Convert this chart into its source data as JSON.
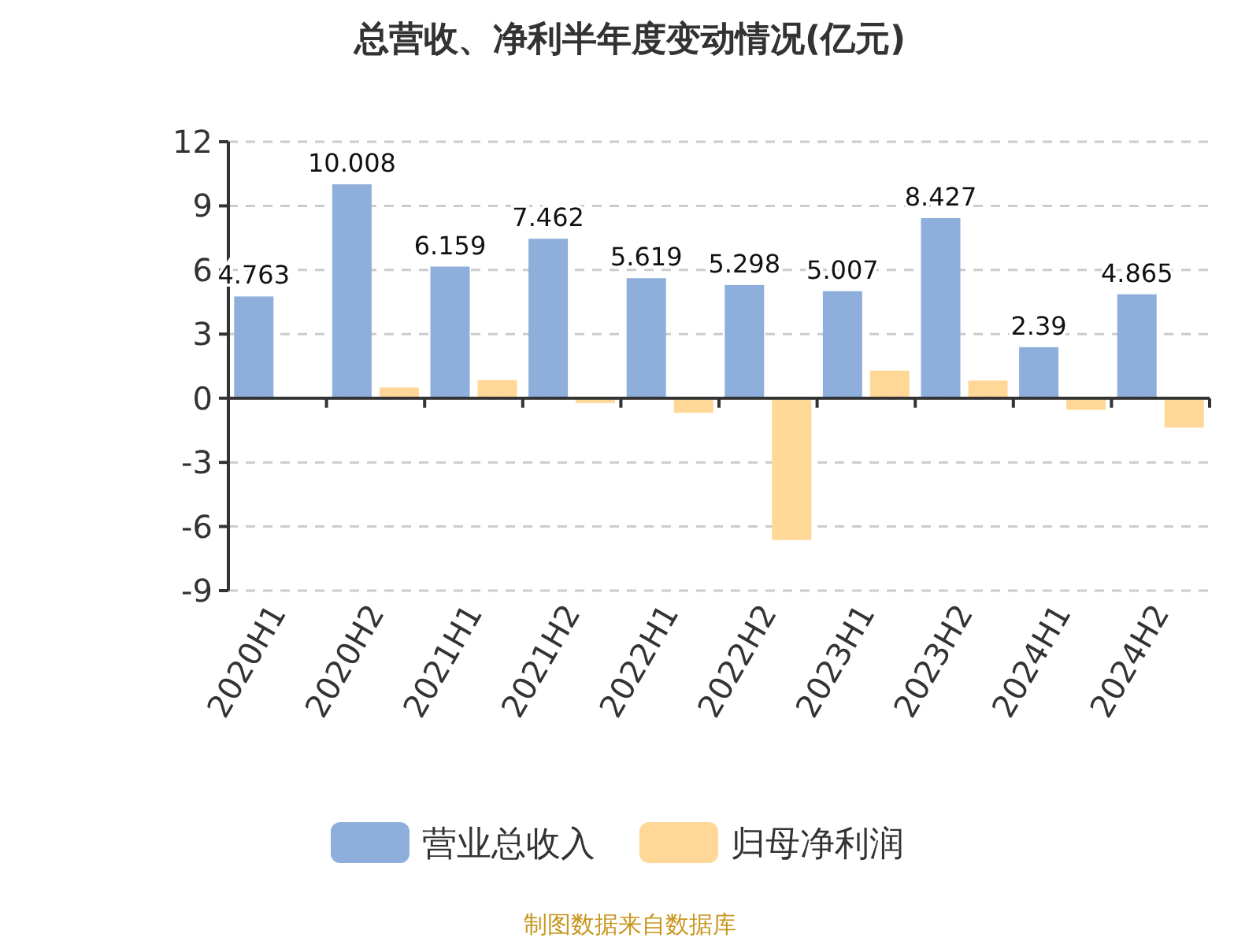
{
  "chart_data": {
    "type": "bar",
    "title": "总营收、净利半年度变动情况(亿元)",
    "categories": [
      "2020H1",
      "2020H2",
      "2021H1",
      "2021H2",
      "2022H1",
      "2022H2",
      "2023H1",
      "2023H2",
      "2024H1",
      "2024H2"
    ],
    "series": [
      {
        "name": "营业总收入",
        "color": "#8eaedb",
        "values": [
          4.763,
          10.008,
          6.159,
          7.462,
          5.619,
          5.298,
          5.007,
          8.427,
          2.39,
          4.865
        ],
        "value_labels": [
          "4.763",
          "10.008",
          "6.159",
          "7.462",
          "5.619",
          "5.298",
          "5.007",
          "8.427",
          "2.39",
          "4.865"
        ]
      },
      {
        "name": "归母净利润",
        "color": "#ffd797",
        "values": [
          0.03,
          0.5,
          0.85,
          -0.22,
          -0.68,
          -6.63,
          1.29,
          0.83,
          -0.54,
          -1.37
        ]
      }
    ],
    "ylim": [
      -9,
      12
    ],
    "yticks": [
      -9,
      -6,
      -3,
      0,
      3,
      6,
      9,
      12
    ],
    "grid": "y",
    "legend": "bottom",
    "annotations": [
      "制图数据来自数据库"
    ]
  }
}
